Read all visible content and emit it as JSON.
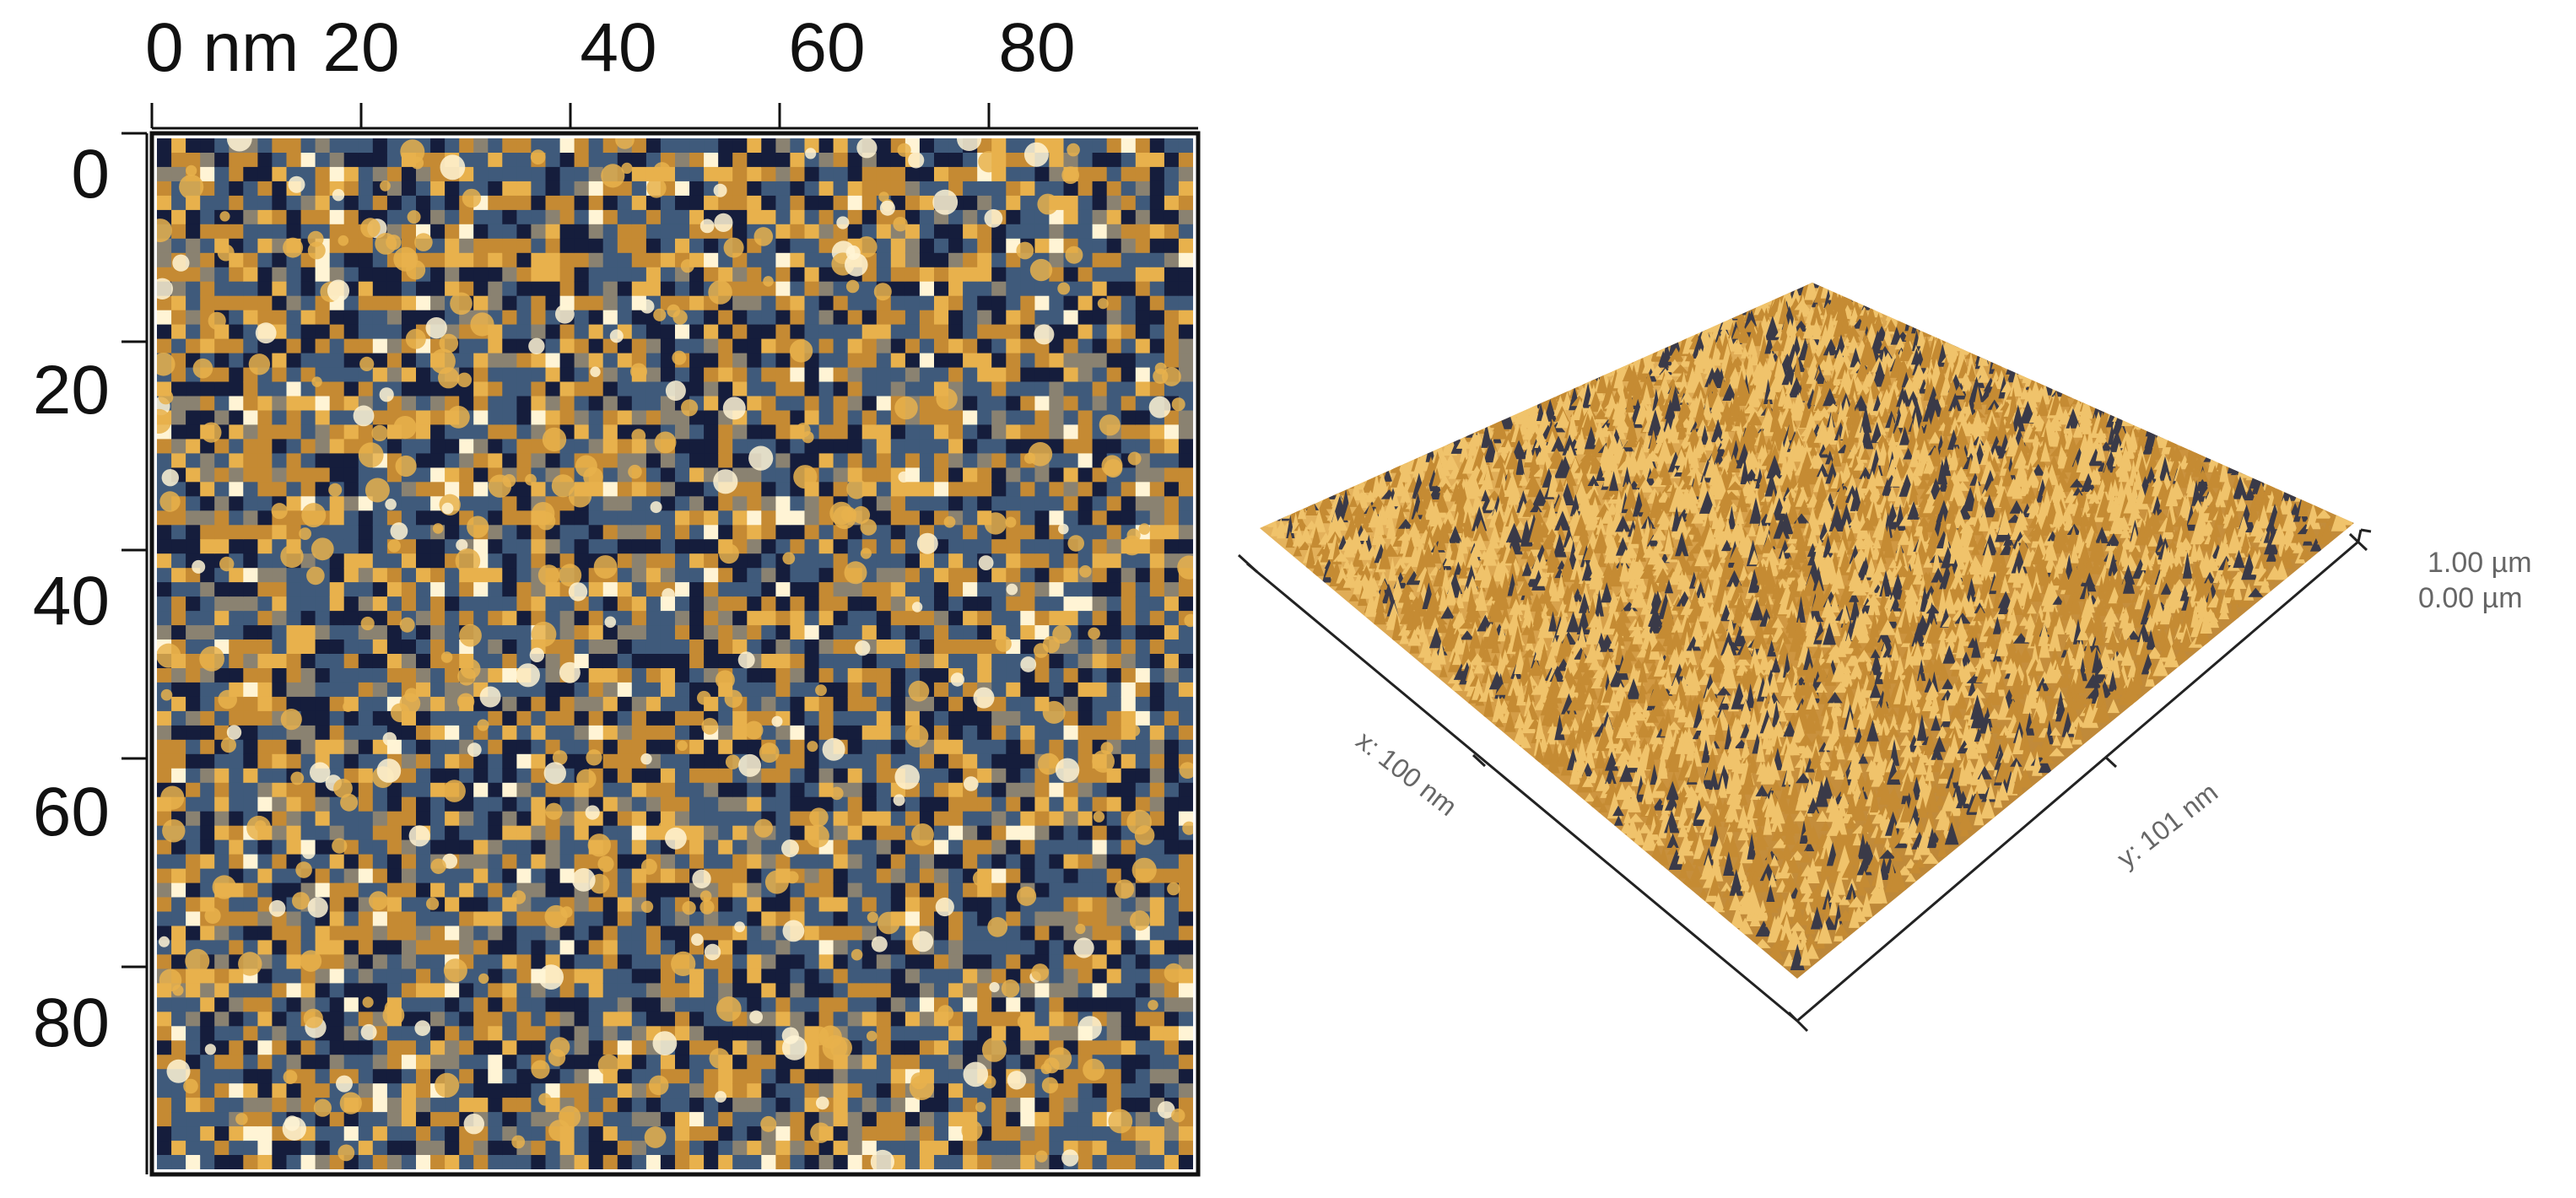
{
  "figure": {
    "topography_2d": {
      "x_axis": {
        "ticks": [
          {
            "value": 0,
            "label": "0 nm"
          },
          {
            "value": 20,
            "label": "20"
          },
          {
            "value": 40,
            "label": "40"
          },
          {
            "value": 60,
            "label": "60"
          },
          {
            "value": 80,
            "label": "80"
          }
        ],
        "range": [
          0,
          100
        ]
      },
      "y_axis": {
        "ticks": [
          {
            "value": 0,
            "label": "0"
          },
          {
            "value": 20,
            "label": "20"
          },
          {
            "value": 40,
            "label": "40"
          },
          {
            "value": 60,
            "label": "60"
          },
          {
            "value": 80,
            "label": "80"
          }
        ],
        "range": [
          0,
          100
        ]
      },
      "colormap": [
        "#151d3c",
        "#3f5a7b",
        "#8a8271",
        "#c58a33",
        "#e8b14c",
        "#fff4d5"
      ]
    },
    "topography_3d": {
      "x_label": "x: 100 nm",
      "y_label": "y: 101 nm",
      "z_scale": {
        "max": "1.00 µm",
        "min": "0.00 µm"
      },
      "colors": {
        "light": "#f0c36b",
        "mid": "#c58b33",
        "dark": "#3a3a48"
      }
    }
  }
}
